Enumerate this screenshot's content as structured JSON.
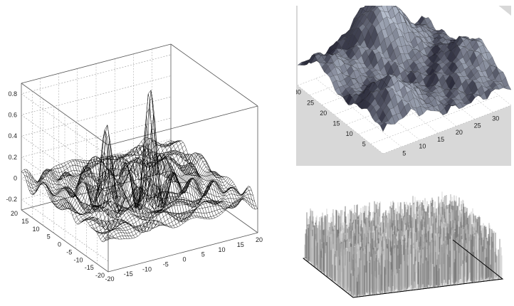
{
  "chart_data": [
    {
      "type": "surface",
      "title": "",
      "xlabel": "",
      "ylabel": "",
      "zlabel": "",
      "x_ticks": [
        "-20",
        "-15",
        "-10",
        "-5",
        "0",
        "5",
        "10",
        "15",
        "20"
      ],
      "y_ticks": [
        "20",
        "15",
        "10",
        "5",
        "0",
        "-5",
        "-10",
        "-15",
        "-20"
      ],
      "z_ticks": [
        "0.8",
        "0.6",
        "0.4",
        "0.2",
        "0",
        "-0.2"
      ],
      "xlim": [
        -20,
        20
      ],
      "ylim": [
        -20,
        20
      ],
      "zlim": [
        -0.3,
        0.9
      ],
      "grid": true,
      "style": "wireframe mesh",
      "peaks": [
        {
          "x": -6,
          "y": 5,
          "z": 0.55
        },
        {
          "x": 4,
          "y": 2,
          "z": 0.85
        }
      ],
      "colors": {
        "mesh": "#000000",
        "axes": "#555555",
        "grid": "#9a9a9a"
      }
    },
    {
      "type": "surface",
      "title": "",
      "xlabel": "",
      "ylabel": "",
      "x_ticks": [
        "5",
        "10",
        "15",
        "20",
        "25",
        "30"
      ],
      "y_ticks": [
        "5",
        "10",
        "15",
        "20",
        "25",
        "30"
      ],
      "xlim": [
        0,
        35
      ],
      "ylim": [
        0,
        33
      ],
      "grid": true,
      "style": "shaded faceted surface",
      "colors": {
        "background": "#d8d8d8",
        "surface_light": "#b4bccb",
        "surface_dark": "#252535",
        "edges": "#111111"
      }
    },
    {
      "type": "surface",
      "title": "",
      "style": "random noise surface, gray spikes",
      "grid": false,
      "colors": {
        "spikes": "#8a8a8a",
        "base": "#000000"
      }
    }
  ]
}
